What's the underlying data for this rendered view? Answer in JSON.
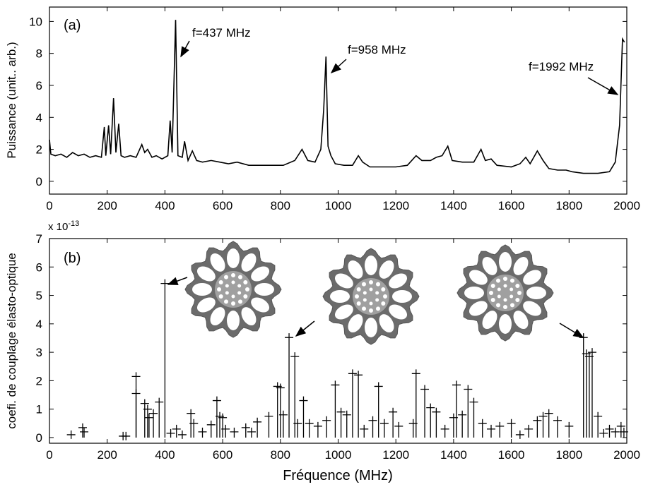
{
  "chart_data": [
    {
      "type": "line",
      "panel_label": "(a)",
      "ylabel": "Puissance (unit.. arb.)",
      "annotations": [
        "f=437 MHz",
        "f=958 MHz",
        "f=1992 MHz"
      ],
      "color": "#000000",
      "x": [
        0,
        5,
        20,
        40,
        60,
        80,
        100,
        120,
        140,
        160,
        180,
        190,
        195,
        205,
        212,
        222,
        230,
        240,
        248,
        260,
        280,
        300,
        320,
        330,
        340,
        355,
        370,
        390,
        410,
        418,
        425,
        437,
        445,
        460,
        468,
        480,
        495,
        510,
        530,
        560,
        590,
        620,
        650,
        690,
        730,
        770,
        810,
        850,
        875,
        895,
        920,
        940,
        950,
        958,
        965,
        975,
        990,
        1020,
        1050,
        1070,
        1085,
        1110,
        1150,
        1200,
        1240,
        1270,
        1290,
        1320,
        1340,
        1360,
        1380,
        1395,
        1430,
        1470,
        1495,
        1510,
        1530,
        1550,
        1600,
        1630,
        1650,
        1665,
        1690,
        1710,
        1730,
        1760,
        1790,
        1810,
        1850,
        1900,
        1940,
        1960,
        1975,
        1985,
        1992
      ],
      "values": [
        2.6,
        1.7,
        1.6,
        1.7,
        1.5,
        1.8,
        1.6,
        1.7,
        1.5,
        1.6,
        1.5,
        3.4,
        1.6,
        3.5,
        1.7,
        5.2,
        1.8,
        3.6,
        1.6,
        1.5,
        1.6,
        1.5,
        2.3,
        1.8,
        2.0,
        1.5,
        1.6,
        1.4,
        1.6,
        3.8,
        1.8,
        10.1,
        1.6,
        1.5,
        2.5,
        1.3,
        1.9,
        1.3,
        1.2,
        1.3,
        1.2,
        1.1,
        1.2,
        1.0,
        1.0,
        1.0,
        1.0,
        1.3,
        2.0,
        1.3,
        1.2,
        2.0,
        4.5,
        7.8,
        2.2,
        1.6,
        1.1,
        1.0,
        1.0,
        1.6,
        1.2,
        0.9,
        0.9,
        0.9,
        1.0,
        1.6,
        1.3,
        1.3,
        1.5,
        1.6,
        2.2,
        1.3,
        1.2,
        1.2,
        2.0,
        1.3,
        1.4,
        1.0,
        0.9,
        1.1,
        1.5,
        1.1,
        1.9,
        1.3,
        0.8,
        0.7,
        0.7,
        0.6,
        0.5,
        0.5,
        0.6,
        1.2,
        3.5,
        8.9,
        8.7
      ],
      "xlim": [
        0,
        2000
      ],
      "xticks": [
        0,
        200,
        400,
        600,
        800,
        1000,
        1200,
        1400,
        1600,
        1800,
        2000
      ],
      "ylim": [
        -0.8,
        10.9
      ],
      "yticks": [
        0,
        2,
        4,
        6,
        8,
        10
      ]
    },
    {
      "type": "scatter",
      "stems": true,
      "panel_label": "(b)",
      "ylabel": "coefi. de couplage élasto-optique",
      "xlabel": "Fréquence (MHz)",
      "scale_label": "x 10",
      "scale_exponent": "-13",
      "color": "#000000",
      "x": [
        75,
        115,
        120,
        255,
        265,
        300,
        300,
        330,
        340,
        345,
        360,
        380,
        400,
        420,
        440,
        460,
        490,
        500,
        530,
        560,
        580,
        590,
        600,
        610,
        640,
        680,
        700,
        720,
        760,
        790,
        800,
        810,
        830,
        850,
        860,
        880,
        900,
        930,
        960,
        990,
        1010,
        1030,
        1050,
        1070,
        1090,
        1120,
        1140,
        1160,
        1190,
        1210,
        1260,
        1270,
        1300,
        1320,
        1340,
        1370,
        1400,
        1410,
        1430,
        1450,
        1470,
        1500,
        1530,
        1560,
        1600,
        1630,
        1660,
        1690,
        1710,
        1730,
        1760,
        1800,
        1850,
        1860,
        1870,
        1880,
        1900,
        1920,
        1940,
        1960,
        1980,
        1990
      ],
      "values": [
        0.1,
        0.35,
        0.2,
        0.05,
        0.05,
        2.15,
        1.55,
        1.2,
        1.0,
        0.7,
        0.85,
        1.25,
        5.42,
        0.15,
        0.3,
        0.1,
        0.85,
        0.5,
        0.2,
        0.45,
        1.3,
        0.75,
        0.7,
        0.3,
        0.2,
        0.35,
        0.2,
        0.55,
        0.75,
        1.8,
        1.75,
        0.8,
        3.52,
        2.85,
        0.5,
        1.3,
        0.5,
        0.4,
        0.6,
        1.85,
        0.9,
        0.8,
        2.25,
        2.2,
        0.3,
        0.6,
        1.8,
        0.5,
        0.9,
        0.4,
        0.5,
        2.25,
        1.7,
        1.05,
        0.9,
        0.3,
        0.7,
        1.85,
        0.8,
        1.7,
        1.25,
        0.5,
        0.3,
        0.4,
        0.5,
        0.1,
        0.3,
        0.6,
        0.75,
        0.85,
        0.6,
        0.4,
        3.52,
        2.95,
        2.85,
        3.0,
        0.75,
        0.15,
        0.3,
        0.2,
        0.4,
        0.2
      ],
      "xlim": [
        0,
        2000
      ],
      "xticks": [
        0,
        200,
        400,
        600,
        800,
        1000,
        1200,
        1400,
        1600,
        1800,
        2000
      ],
      "ylim": [
        -0.2,
        7
      ],
      "yticks": [
        0,
        1,
        2,
        3,
        4,
        5,
        6,
        7
      ]
    }
  ]
}
